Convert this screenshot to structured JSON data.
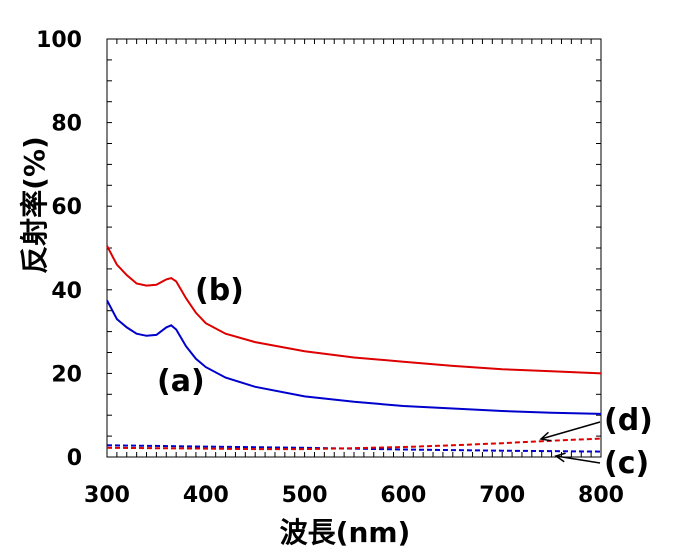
{
  "chart_data": {
    "type": "line",
    "title": "",
    "xlabel": "波長(nm)",
    "ylabel": "反射率(%)",
    "xlim": [
      300,
      800
    ],
    "ylim": [
      0,
      100
    ],
    "x_ticks": [
      300,
      400,
      500,
      600,
      700,
      800
    ],
    "y_ticks": [
      0,
      20,
      40,
      60,
      80,
      100
    ],
    "grid": false,
    "legend": "none",
    "series": [
      {
        "id": "a",
        "color": "#0000cc",
        "dash": "solid",
        "points": [
          [
            300,
            37.5
          ],
          [
            310,
            33
          ],
          [
            320,
            31
          ],
          [
            330,
            29.5
          ],
          [
            340,
            29
          ],
          [
            350,
            29.2
          ],
          [
            360,
            31
          ],
          [
            365,
            31.5
          ],
          [
            370,
            30.5
          ],
          [
            380,
            26.5
          ],
          [
            390,
            23.5
          ],
          [
            400,
            21.5
          ],
          [
            420,
            19
          ],
          [
            450,
            16.8
          ],
          [
            500,
            14.5
          ],
          [
            550,
            13.2
          ],
          [
            600,
            12.2
          ],
          [
            650,
            11.6
          ],
          [
            700,
            11
          ],
          [
            750,
            10.6
          ],
          [
            800,
            10.3
          ]
        ]
      },
      {
        "id": "b",
        "color": "#dd0000",
        "dash": "solid",
        "points": [
          [
            300,
            50.5
          ],
          [
            310,
            46
          ],
          [
            320,
            43.5
          ],
          [
            330,
            41.5
          ],
          [
            340,
            41
          ],
          [
            350,
            41.2
          ],
          [
            360,
            42.5
          ],
          [
            365,
            42.8
          ],
          [
            370,
            42
          ],
          [
            380,
            38
          ],
          [
            390,
            34.5
          ],
          [
            400,
            32
          ],
          [
            420,
            29.5
          ],
          [
            450,
            27.5
          ],
          [
            500,
            25.3
          ],
          [
            550,
            23.8
          ],
          [
            600,
            22.8
          ],
          [
            650,
            21.8
          ],
          [
            700,
            21
          ],
          [
            750,
            20.5
          ],
          [
            800,
            20
          ]
        ]
      },
      {
        "id": "c",
        "color": "#0000cc",
        "dash": "dashed",
        "points": [
          [
            300,
            2.8
          ],
          [
            400,
            2.5
          ],
          [
            500,
            2.2
          ],
          [
            600,
            1.8
          ],
          [
            700,
            1.5
          ],
          [
            800,
            1.3
          ]
        ]
      },
      {
        "id": "d",
        "color": "#dd0000",
        "dash": "dashed",
        "points": [
          [
            300,
            2.2
          ],
          [
            350,
            2.1
          ],
          [
            400,
            2.0
          ],
          [
            450,
            1.9
          ],
          [
            500,
            1.9
          ],
          [
            550,
            2.1
          ],
          [
            600,
            2.4
          ],
          [
            650,
            2.8
          ],
          [
            700,
            3.3
          ],
          [
            750,
            3.9
          ],
          [
            800,
            4.4
          ]
        ]
      }
    ],
    "annotations": [
      {
        "id": "label-a",
        "text": "(a)",
        "series": "a"
      },
      {
        "id": "label-b",
        "text": "(b)",
        "series": "b"
      },
      {
        "id": "label-c",
        "text": "(c)",
        "series": "c"
      },
      {
        "id": "label-d",
        "text": "(d)",
        "series": "d"
      }
    ]
  }
}
